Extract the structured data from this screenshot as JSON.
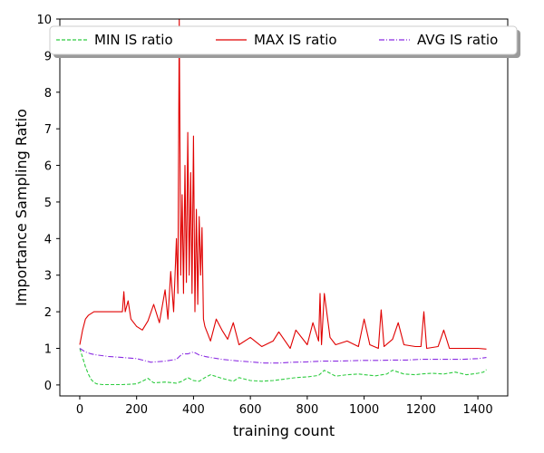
{
  "chart_data": {
    "type": "line",
    "xlabel": "training count",
    "ylabel": "Importance Sampling Ratio",
    "xlim": [
      -70,
      1505
    ],
    "ylim": [
      -0.3,
      10
    ],
    "x_ticks": [
      0,
      200,
      400,
      600,
      800,
      1000,
      1200,
      1400
    ],
    "y_ticks": [
      0,
      1,
      2,
      3,
      4,
      5,
      6,
      7,
      8,
      9,
      10
    ],
    "legend_position": "top",
    "series": [
      {
        "name": "MIN IS ratio",
        "color": "#2ecc40",
        "style": "dashed",
        "x": [
          0,
          10,
          20,
          30,
          40,
          50,
          60,
          80,
          100,
          150,
          200,
          220,
          240,
          260,
          300,
          340,
          360,
          380,
          400,
          420,
          440,
          460,
          500,
          540,
          560,
          600,
          640,
          680,
          720,
          760,
          800,
          840,
          860,
          900,
          940,
          980,
          1000,
          1040,
          1080,
          1100,
          1140,
          1180,
          1200,
          1240,
          1280,
          1320,
          1360,
          1400,
          1420,
          1430
        ],
        "values": [
          1.0,
          0.75,
          0.5,
          0.3,
          0.15,
          0.07,
          0.03,
          0.01,
          0.01,
          0.01,
          0.03,
          0.1,
          0.18,
          0.06,
          0.08,
          0.05,
          0.1,
          0.2,
          0.12,
          0.1,
          0.2,
          0.28,
          0.18,
          0.1,
          0.2,
          0.12,
          0.1,
          0.12,
          0.16,
          0.2,
          0.22,
          0.26,
          0.4,
          0.24,
          0.28,
          0.3,
          0.28,
          0.25,
          0.3,
          0.4,
          0.3,
          0.28,
          0.3,
          0.32,
          0.3,
          0.35,
          0.28,
          0.32,
          0.35,
          0.42
        ]
      },
      {
        "name": "MAX IS ratio",
        "color": "#e00000",
        "style": "solid",
        "x": [
          0,
          10,
          20,
          30,
          50,
          70,
          100,
          130,
          150,
          155,
          160,
          170,
          180,
          200,
          220,
          240,
          260,
          280,
          300,
          310,
          320,
          330,
          340,
          345,
          350,
          355,
          360,
          365,
          370,
          375,
          380,
          385,
          390,
          395,
          400,
          405,
          410,
          415,
          420,
          425,
          430,
          435,
          440,
          445,
          450,
          460,
          480,
          500,
          520,
          540,
          560,
          600,
          640,
          680,
          700,
          740,
          760,
          800,
          820,
          840,
          845,
          850,
          860,
          880,
          900,
          940,
          980,
          1000,
          1020,
          1050,
          1060,
          1070,
          1100,
          1120,
          1140,
          1180,
          1200,
          1210,
          1220,
          1260,
          1280,
          1300,
          1360,
          1400,
          1430
        ],
        "values": [
          1.1,
          1.5,
          1.8,
          1.9,
          2.0,
          2.0,
          2.0,
          2.0,
          2.0,
          2.55,
          2.0,
          2.3,
          1.8,
          1.6,
          1.5,
          1.75,
          2.2,
          1.7,
          2.6,
          1.8,
          3.1,
          2.0,
          4.0,
          2.5,
          10.0,
          3.0,
          5.2,
          2.5,
          6.0,
          2.8,
          6.9,
          3.0,
          5.8,
          2.5,
          6.8,
          2.0,
          4.8,
          2.2,
          4.6,
          3.0,
          4.3,
          1.8,
          1.6,
          1.5,
          1.4,
          1.2,
          1.8,
          1.5,
          1.25,
          1.7,
          1.1,
          1.3,
          1.05,
          1.2,
          1.45,
          1.0,
          1.5,
          1.1,
          1.7,
          1.2,
          2.5,
          1.1,
          2.5,
          1.3,
          1.1,
          1.2,
          1.05,
          1.8,
          1.1,
          1.0,
          2.05,
          1.05,
          1.25,
          1.7,
          1.1,
          1.05,
          1.05,
          2.0,
          1.0,
          1.05,
          1.5,
          1.0,
          1.0,
          1.0,
          0.98
        ]
      },
      {
        "name": "AVG IS ratio",
        "color": "#8a2be2",
        "style": "dashdot",
        "x": [
          0,
          20,
          40,
          60,
          100,
          150,
          200,
          250,
          300,
          340,
          360,
          380,
          400,
          420,
          440,
          460,
          500,
          550,
          600,
          650,
          700,
          750,
          800,
          850,
          900,
          950,
          1000,
          1050,
          1100,
          1150,
          1200,
          1250,
          1300,
          1350,
          1400,
          1430
        ],
        "values": [
          1.0,
          0.9,
          0.85,
          0.82,
          0.78,
          0.75,
          0.72,
          0.62,
          0.65,
          0.7,
          0.85,
          0.85,
          0.9,
          0.82,
          0.78,
          0.75,
          0.7,
          0.66,
          0.63,
          0.6,
          0.6,
          0.62,
          0.63,
          0.65,
          0.65,
          0.66,
          0.67,
          0.67,
          0.68,
          0.68,
          0.7,
          0.7,
          0.7,
          0.7,
          0.72,
          0.75
        ]
      }
    ]
  }
}
